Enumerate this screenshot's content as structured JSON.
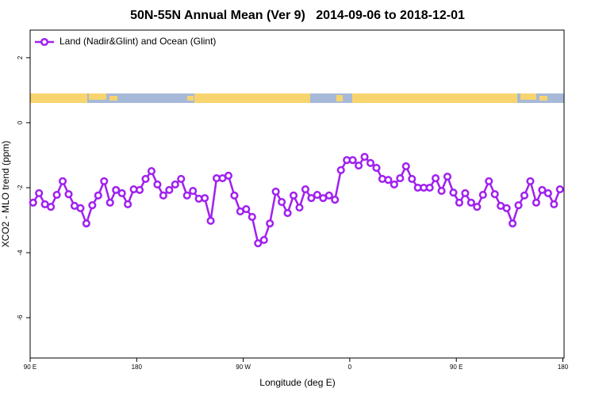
{
  "chart_data": {
    "type": "line",
    "title": "50N-55N Annual Mean (Ver 9)   2014-09-06 to 2018-12-01",
    "x_label": "Longitude (deg E)",
    "y_label": "XCO2 - MLO trend (ppm)",
    "xlim": [
      90,
      541
    ],
    "ylim": [
      -7.24,
      2.85
    ],
    "xticks": [
      {
        "value": 90,
        "label": "90 E"
      },
      180,
      {
        "value": 270,
        "label": "90 W"
      },
      {
        "value": 360,
        "label": "0"
      },
      {
        "value": 450,
        "label": "90 E"
      },
      {
        "value": 540,
        "label": "180"
      }
    ],
    "yticks": [
      2,
      0,
      -2,
      -4,
      -6
    ],
    "legend_position": "upper left",
    "x": [
      92.5,
      97.5,
      102.5,
      107.5,
      112.5,
      117.5,
      122.5,
      127.5,
      132.5,
      137.5,
      142.5,
      147.5,
      152.5,
      157.5,
      162.5,
      167.5,
      172.5,
      177.5,
      182.5,
      187.5,
      192.5,
      197.5,
      202.5,
      207.5,
      212.5,
      217.5,
      222.5,
      227.5,
      232.5,
      237.5,
      242.5,
      247.5,
      252.5,
      257.5,
      262.5,
      267.5,
      272.5,
      277.5,
      282.5,
      287.5,
      292.5,
      297.5,
      302.5,
      307.5,
      312.5,
      317.5,
      322.5,
      327.5,
      332.5,
      337.5,
      342.5,
      347.5,
      352.5,
      357.5,
      362.5,
      367.5,
      372.5,
      377.5,
      382.5,
      387.5,
      392.5,
      397.5,
      402.5,
      407.5,
      412.5,
      417.5,
      422.5,
      427.5,
      432.5,
      437.5,
      442.5,
      447.5,
      452.5,
      457.5,
      462.5,
      467.5,
      472.5,
      477.5,
      482.5,
      487.5,
      492.5,
      497.5,
      502.5,
      507.5,
      512.5,
      517.5,
      522.5,
      527.5,
      532.5,
      537.5
    ],
    "series": [
      {
        "name": "Land (Nadir&Glint) and Ocean (Glint)",
        "color": "#a020f0",
        "values": [
          -2.46,
          -2.17,
          -2.51,
          -2.59,
          -2.22,
          -1.8,
          -2.2,
          -2.56,
          -2.63,
          -3.1,
          -2.54,
          -2.24,
          -1.8,
          -2.46,
          -2.07,
          -2.17,
          -2.51,
          -2.05,
          -2.07,
          -1.73,
          -1.49,
          -1.9,
          -2.24,
          -2.07,
          -1.9,
          -1.73,
          -2.24,
          -2.1,
          -2.34,
          -2.32,
          -3.02,
          -1.71,
          -1.71,
          -1.63,
          -2.24,
          -2.73,
          -2.66,
          -2.9,
          -3.71,
          -3.61,
          -3.1,
          -2.12,
          -2.44,
          -2.78,
          -2.24,
          -2.61,
          -2.05,
          -2.32,
          -2.22,
          -2.32,
          -2.24,
          -2.37,
          -1.46,
          -1.15,
          -1.15,
          -1.32,
          -1.05,
          -1.24,
          -1.39,
          -1.73,
          -1.76,
          -1.9,
          -1.71,
          -1.34,
          -1.73,
          -2.0,
          -2.0,
          -2.0,
          -1.71,
          -2.1,
          -1.66,
          -2.15,
          -2.46,
          -2.17,
          -2.46,
          -2.59,
          -2.22,
          -1.8,
          -2.2,
          -2.56,
          -2.63,
          -3.1,
          -2.54,
          -2.24,
          -1.8,
          -2.46,
          -2.07,
          -2.17,
          -2.51,
          -2.05
        ]
      }
    ]
  }
}
